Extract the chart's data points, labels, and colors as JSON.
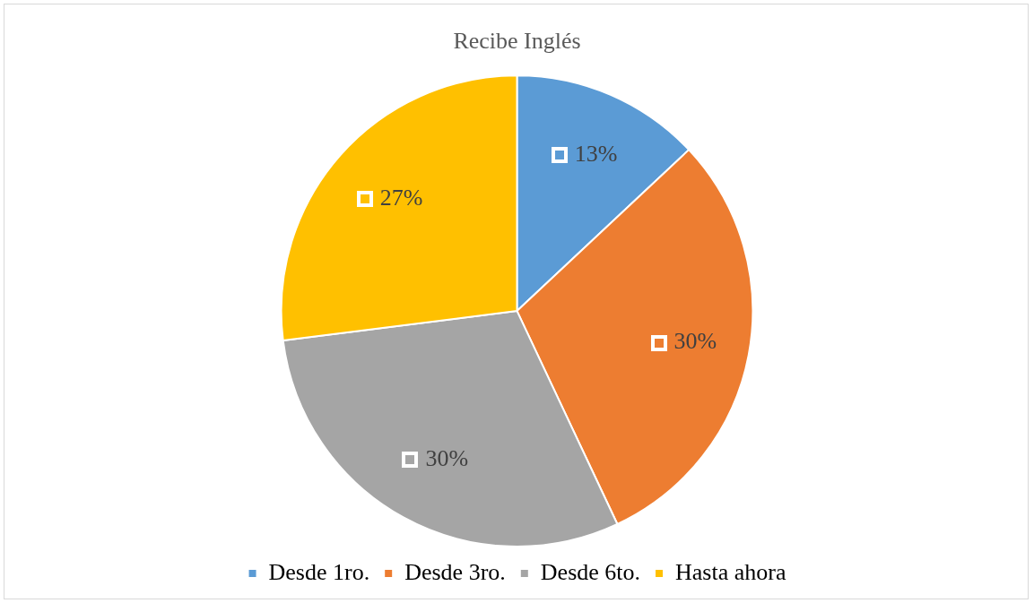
{
  "chart_data": {
    "type": "pie",
    "title": "Recibe Inglés",
    "categories": [
      "Desde 1ro.",
      "Desde 3ro.",
      "Desde 6to.",
      "Hasta ahora"
    ],
    "values": [
      13,
      30,
      30,
      27
    ],
    "colors": [
      "#5b9bd5",
      "#ed7d31",
      "#a5a5a5",
      "#ffc000"
    ],
    "value_labels": [
      "13%",
      "30%",
      "30%",
      "27%"
    ],
    "legend": "bottom"
  }
}
